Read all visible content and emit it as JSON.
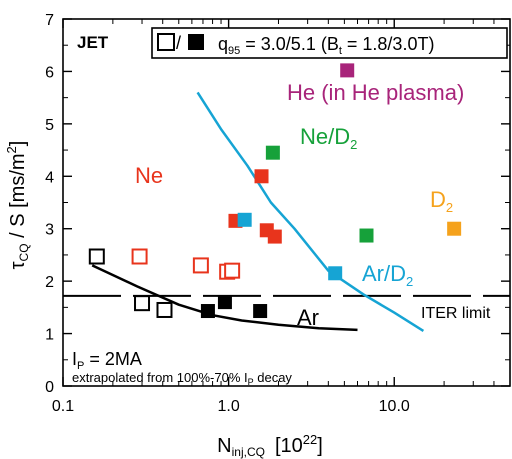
{
  "chart_data": {
    "type": "scatter",
    "x_scale": "log",
    "xlim": [
      0.1,
      50
    ],
    "ylim": [
      0,
      7
    ],
    "xlabel": {
      "main": "N",
      "sub": "inj,CQ",
      "unit": "[10",
      "sup": "22",
      "close": "]"
    },
    "ylabel": {
      "main": "τ",
      "sub": "CQ",
      "unit": " / S [ms/m",
      "sup": "2",
      "close": "]"
    },
    "x_ticks": [
      {
        "v": 0.1,
        "label": "0.1"
      },
      {
        "v": 1,
        "label": "1.0"
      },
      {
        "v": 10,
        "label": "10.0"
      }
    ],
    "y_ticks": [
      {
        "v": 0,
        "label": "0"
      },
      {
        "v": 1,
        "label": "1"
      },
      {
        "v": 2,
        "label": "2"
      },
      {
        "v": 3,
        "label": "3"
      },
      {
        "v": 4,
        "label": "4"
      },
      {
        "v": 5,
        "label": "5"
      },
      {
        "v": 6,
        "label": "6"
      },
      {
        "v": 7,
        "label": "7"
      }
    ],
    "series": [
      {
        "name": "Ne",
        "color": "#e8341c",
        "marker": "square",
        "points": [
          [
            1.58,
            4.0
          ],
          [
            1.1,
            3.15
          ],
          [
            1.7,
            2.97
          ],
          [
            1.9,
            2.85
          ]
        ]
      },
      {
        "name": "Ne",
        "color": "#e8341c",
        "marker": "open-square",
        "points": [
          [
            0.29,
            2.47
          ],
          [
            0.68,
            2.3
          ],
          [
            0.98,
            2.18
          ],
          [
            1.05,
            2.2
          ]
        ]
      },
      {
        "name": "Ne/D2",
        "color": "#16a13a",
        "marker": "square",
        "points": [
          [
            1.85,
            4.45
          ],
          [
            6.8,
            2.87
          ]
        ]
      },
      {
        "name": "D2",
        "color": "#f5a21c",
        "marker": "square",
        "points": [
          [
            23,
            3.0
          ]
        ]
      },
      {
        "name": "He (in He plasma)",
        "color": "#a8247a",
        "marker": "square",
        "points": [
          [
            5.2,
            6.02
          ]
        ]
      },
      {
        "name": "Ar/D2",
        "color": "#16a4d4",
        "marker": "square",
        "points": [
          [
            1.25,
            3.17
          ],
          [
            4.4,
            2.15
          ]
        ]
      },
      {
        "name": "Ar",
        "color": "#000000",
        "marker": "square",
        "points": [
          [
            0.75,
            1.43
          ],
          [
            0.95,
            1.6
          ],
          [
            1.55,
            1.43
          ]
        ]
      },
      {
        "name": "Ar",
        "color": "#000000",
        "marker": "open-square",
        "points": [
          [
            0.16,
            2.47
          ],
          [
            0.3,
            1.58
          ],
          [
            0.41,
            1.45
          ]
        ]
      }
    ],
    "curves": [
      {
        "color": "#16a4d4",
        "points": [
          [
            0.65,
            5.6
          ],
          [
            0.9,
            4.9
          ],
          [
            1.3,
            4.2
          ],
          [
            1.8,
            3.5
          ],
          [
            2.5,
            3.0
          ],
          [
            4.0,
            2.2
          ],
          [
            6.5,
            1.75
          ],
          [
            10,
            1.4
          ],
          [
            15,
            1.05
          ]
        ]
      },
      {
        "color": "#000000",
        "points": [
          [
            0.15,
            2.3
          ],
          [
            0.28,
            1.9
          ],
          [
            0.5,
            1.55
          ],
          [
            0.8,
            1.35
          ],
          [
            1.2,
            1.25
          ],
          [
            2.0,
            1.17
          ],
          [
            3.5,
            1.1
          ],
          [
            6.0,
            1.07
          ]
        ]
      }
    ],
    "iter_limit": {
      "y": 1.72,
      "label": "ITER limit"
    },
    "annotations": {
      "jet": "JET",
      "legend_box": {
        "text": "q",
        "sub": "95",
        "rest1": " = 3.0/5.1 (B",
        "sub2": "t",
        "rest2": " = 1.8/3.0T)"
      },
      "ip": {
        "main": "I",
        "sub": "P",
        "rest": " = 2MA"
      },
      "extrap": {
        "pre": "extrapolated from 100%-70% I",
        "sub": "P",
        "post": " decay"
      },
      "ne": {
        "text": "Ne",
        "color": "#e8341c"
      },
      "ned2": {
        "text": "Ne/D",
        "sub": "2",
        "color": "#16a13a"
      },
      "d2": {
        "text": "D",
        "sub": "2",
        "color": "#f5a21c"
      },
      "he": {
        "text": "He (in He plasma)",
        "color": "#a8247a"
      },
      "ard2": {
        "text": "Ar/D",
        "sub": "2",
        "color": "#16a4d4"
      },
      "ar": {
        "text": "Ar",
        "color": "#000000"
      }
    }
  }
}
